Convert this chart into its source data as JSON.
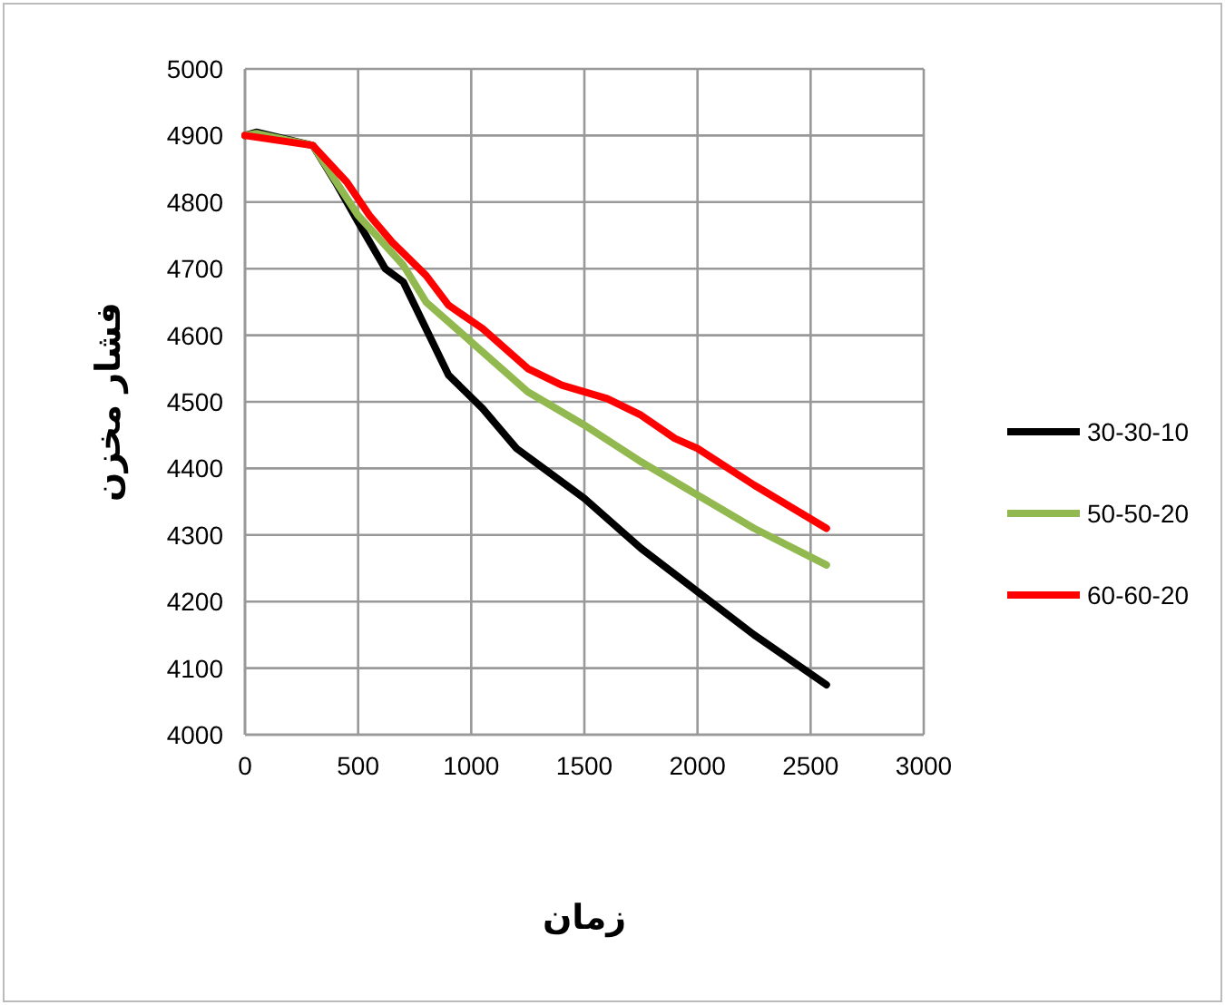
{
  "chart_data": {
    "type": "line",
    "xlabel": "زمان",
    "ylabel": "فشار مخزن",
    "xlim": [
      0,
      3000
    ],
    "ylim": [
      4000,
      5000
    ],
    "xticks": [
      0,
      500,
      1000,
      1500,
      2000,
      2500,
      3000
    ],
    "yticks": [
      4000,
      4100,
      4200,
      4300,
      4400,
      4500,
      4600,
      4700,
      4800,
      4900,
      5000
    ],
    "grid": true,
    "legend": "right",
    "marker": "none",
    "line_style": "solid",
    "series": [
      {
        "name": "30-30-10",
        "color": "#000000",
        "x": [
          0,
          50,
          300,
          400,
          500,
          620,
          700,
          900,
          1050,
          1200,
          1300,
          1500,
          1750,
          2000,
          2250,
          2570
        ],
        "values": [
          4900,
          4905,
          4885,
          4830,
          4770,
          4700,
          4680,
          4540,
          4490,
          4430,
          4405,
          4355,
          4280,
          4215,
          4150,
          4075
        ]
      },
      {
        "name": "50-50-20",
        "color": "#92b94f",
        "x": [
          0,
          50,
          300,
          400,
          500,
          620,
          700,
          800,
          1000,
          1250,
          1500,
          1750,
          2000,
          2250,
          2570
        ],
        "values": [
          4900,
          4903,
          4885,
          4832,
          4780,
          4735,
          4705,
          4650,
          4590,
          4515,
          4465,
          4410,
          4360,
          4310,
          4255
        ]
      },
      {
        "name": "60-60-20",
        "color": "#ff0000",
        "x": [
          0,
          300,
          450,
          550,
          650,
          800,
          900,
          1050,
          1250,
          1400,
          1600,
          1750,
          1900,
          2000,
          2250,
          2570
        ],
        "values": [
          4900,
          4885,
          4830,
          4780,
          4740,
          4690,
          4645,
          4610,
          4550,
          4525,
          4505,
          4480,
          4445,
          4430,
          4375,
          4310
        ]
      }
    ]
  }
}
